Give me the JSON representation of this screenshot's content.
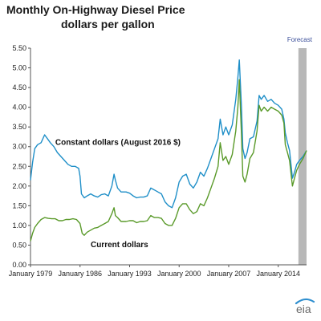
{
  "chart_data": {
    "type": "line",
    "title": "Monthly On-Highway Diesel Price",
    "subtitle": "dollars per gallon",
    "xlabel": "",
    "ylabel": "",
    "xlim": [
      1979.0,
      2018.0
    ],
    "ylim": [
      0,
      5.5
    ],
    "y_ticks": [
      "0.00",
      "0.50",
      "1.00",
      "1.50",
      "2.00",
      "2.50",
      "3.00",
      "3.50",
      "4.00",
      "4.50",
      "5.00",
      "5.50"
    ],
    "x_ticks": [
      {
        "value": 1979,
        "label": "January 1979"
      },
      {
        "value": 1986,
        "label": "January 1986"
      },
      {
        "value": 1993,
        "label": "January 1993"
      },
      {
        "value": 2000,
        "label": "January 2000"
      },
      {
        "value": 2007,
        "label": "January 2007"
      },
      {
        "value": 2014,
        "label": "January 2014"
      }
    ],
    "grid": false,
    "forecast": {
      "label": "Forecast",
      "start": 2016.85,
      "end": 2018.0,
      "color": "#b8b8b8"
    },
    "series": [
      {
        "name": "Constant dollars (August 2016 $)",
        "color": "#1f8fc8",
        "x": [
          1979.0,
          1979.3,
          1979.6,
          1980.0,
          1980.5,
          1981.0,
          1981.4,
          1981.8,
          1982.3,
          1982.8,
          1983.3,
          1983.8,
          1984.3,
          1984.8,
          1985.3,
          1985.8,
          1986.0,
          1986.2,
          1986.6,
          1987.0,
          1987.5,
          1988.0,
          1988.5,
          1989.0,
          1989.5,
          1990.0,
          1990.5,
          1990.8,
          1991.0,
          1991.3,
          1991.8,
          1992.5,
          1993.0,
          1993.5,
          1994.0,
          1994.5,
          1995.0,
          1995.5,
          1996.0,
          1996.5,
          1997.0,
          1997.5,
          1998.0,
          1998.5,
          1999.0,
          1999.5,
          2000.0,
          2000.5,
          2001.0,
          2001.5,
          2002.0,
          2002.5,
          2003.0,
          2003.5,
          2004.0,
          2004.5,
          2005.0,
          2005.5,
          2005.8,
          2006.2,
          2006.6,
          2007.0,
          2007.5,
          2008.0,
          2008.3,
          2008.5,
          2008.8,
          2009.0,
          2009.3,
          2009.6,
          2010.0,
          2010.5,
          2011.0,
          2011.3,
          2011.6,
          2012.0,
          2012.5,
          2013.0,
          2013.5,
          2014.0,
          2014.5,
          2014.8,
          2015.0,
          2015.3,
          2015.6,
          2016.0,
          2016.3,
          2016.6,
          2017.0,
          2017.5,
          2018.0
        ],
        "y": [
          2.15,
          2.6,
          2.95,
          3.05,
          3.1,
          3.3,
          3.2,
          3.1,
          3.0,
          2.85,
          2.75,
          2.65,
          2.55,
          2.5,
          2.5,
          2.45,
          2.25,
          1.8,
          1.7,
          1.75,
          1.8,
          1.75,
          1.72,
          1.78,
          1.8,
          1.75,
          2.0,
          2.3,
          2.15,
          1.95,
          1.85,
          1.85,
          1.82,
          1.75,
          1.7,
          1.72,
          1.72,
          1.75,
          1.95,
          1.9,
          1.85,
          1.8,
          1.6,
          1.5,
          1.45,
          1.7,
          2.1,
          2.25,
          2.3,
          2.05,
          1.95,
          2.1,
          2.35,
          2.25,
          2.45,
          2.7,
          2.95,
          3.2,
          3.7,
          3.3,
          3.5,
          3.3,
          3.55,
          4.2,
          4.75,
          5.2,
          4.0,
          2.95,
          2.7,
          2.85,
          3.2,
          3.25,
          3.65,
          4.3,
          4.2,
          4.3,
          4.15,
          4.2,
          4.1,
          4.05,
          3.95,
          3.7,
          3.35,
          3.1,
          2.9,
          2.2,
          2.35,
          2.55,
          2.65,
          2.75,
          2.9
        ]
      },
      {
        "name": "Current dollars",
        "color": "#5a9a2a",
        "x": [
          1979.0,
          1979.3,
          1979.6,
          1980.0,
          1980.5,
          1981.0,
          1981.5,
          1982.0,
          1982.5,
          1983.0,
          1983.5,
          1984.0,
          1984.5,
          1985.0,
          1985.5,
          1986.0,
          1986.3,
          1986.6,
          1987.0,
          1987.5,
          1988.0,
          1988.5,
          1989.0,
          1989.5,
          1990.0,
          1990.5,
          1990.8,
          1991.0,
          1991.3,
          1991.8,
          1992.5,
          1993.0,
          1993.5,
          1994.0,
          1994.5,
          1995.0,
          1995.5,
          1996.0,
          1996.5,
          1997.0,
          1997.5,
          1998.0,
          1998.5,
          1999.0,
          1999.5,
          2000.0,
          2000.5,
          2001.0,
          2001.5,
          2002.0,
          2002.5,
          2003.0,
          2003.5,
          2004.0,
          2004.5,
          2005.0,
          2005.5,
          2005.8,
          2006.2,
          2006.6,
          2007.0,
          2007.5,
          2008.0,
          2008.3,
          2008.5,
          2008.8,
          2009.0,
          2009.3,
          2009.6,
          2010.0,
          2010.5,
          2011.0,
          2011.3,
          2011.6,
          2012.0,
          2012.5,
          2013.0,
          2013.5,
          2014.0,
          2014.5,
          2014.8,
          2015.0,
          2015.3,
          2015.6,
          2016.0,
          2016.3,
          2016.6,
          2017.0,
          2017.5,
          2018.0
        ],
        "y": [
          0.6,
          0.8,
          0.95,
          1.05,
          1.15,
          1.2,
          1.18,
          1.17,
          1.17,
          1.12,
          1.12,
          1.15,
          1.15,
          1.17,
          1.15,
          1.05,
          0.8,
          0.75,
          0.83,
          0.88,
          0.93,
          0.95,
          1.0,
          1.05,
          1.1,
          1.3,
          1.45,
          1.25,
          1.2,
          1.1,
          1.1,
          1.12,
          1.12,
          1.07,
          1.1,
          1.1,
          1.12,
          1.25,
          1.2,
          1.2,
          1.18,
          1.05,
          1.0,
          1.0,
          1.18,
          1.45,
          1.55,
          1.55,
          1.4,
          1.3,
          1.35,
          1.55,
          1.5,
          1.7,
          1.95,
          2.2,
          2.5,
          3.1,
          2.65,
          2.75,
          2.55,
          2.8,
          3.4,
          4.0,
          4.7,
          3.3,
          2.25,
          2.1,
          2.3,
          2.7,
          2.85,
          3.4,
          4.05,
          3.9,
          4.0,
          3.9,
          4.0,
          3.95,
          3.9,
          3.8,
          3.6,
          3.05,
          2.85,
          2.65,
          2.0,
          2.2,
          2.4,
          2.55,
          2.7,
          2.9
        ]
      }
    ],
    "annotations": [
      {
        "text": "Constant dollars (August 2016 $)",
        "x": 1982.5,
        "y": 3.05
      },
      {
        "text": "Current dollars",
        "x": 1987.5,
        "y": 0.45
      }
    ]
  },
  "logo": {
    "text": "eia"
  }
}
